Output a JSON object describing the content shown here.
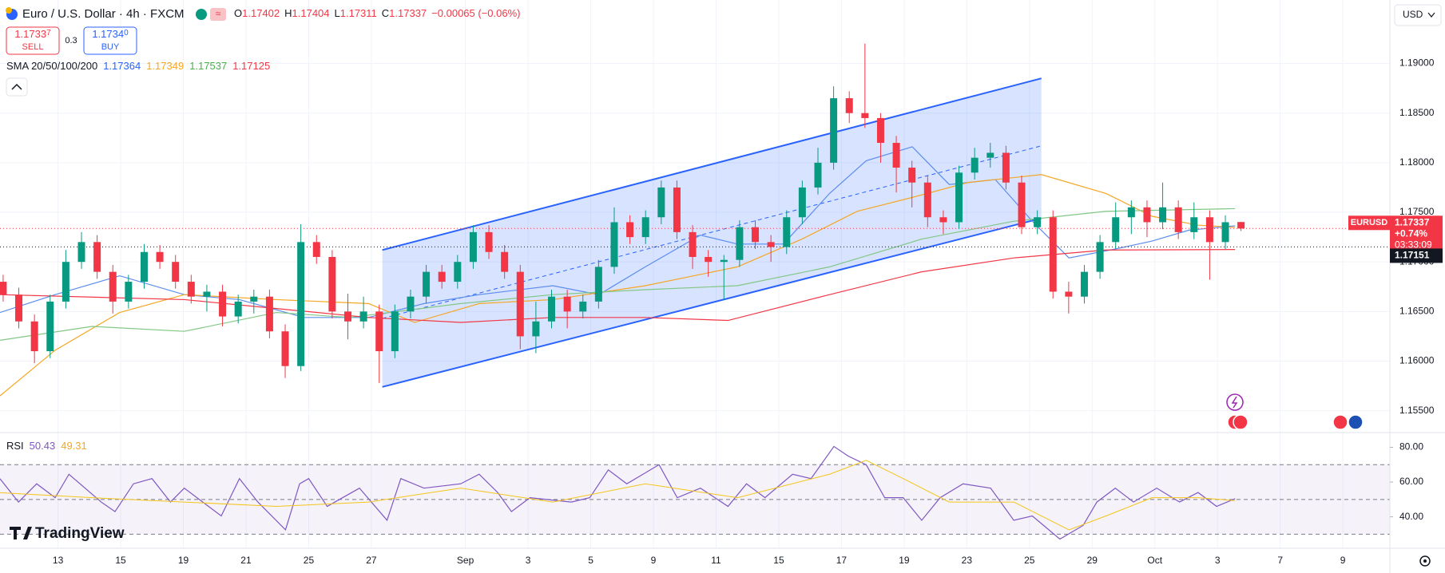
{
  "chart_data": {
    "type": "candlestick",
    "title": "Euro / U.S. Dollar · 4h · FXCM",
    "ohlc_prefixes": [
      "O",
      "H",
      "L",
      "C"
    ],
    "change": "−0.00065 (−0.06%)",
    "sell": {
      "price": "1.1733",
      "pip": "7",
      "label": "SELL"
    },
    "buy": {
      "price": "1.1734",
      "pip": "0",
      "label": "BUY"
    },
    "spread": "0.3",
    "currency": "USD",
    "symbol_tag": "EURUSD",
    "change_tag": "+0.74%",
    "countdown": "03:33:09",
    "ref_line": 1.17151,
    "logo": "TradingView",
    "up_color": "#089981",
    "down_color": "#f23645",
    "x": [
      -1.75,
      -1.25,
      -0.75,
      -0.25,
      0.25,
      0.75,
      1.25,
      1.75,
      2.25,
      2.75,
      3.25,
      3.75,
      4.25,
      4.75,
      5.25,
      5.75,
      6.25,
      6.75,
      7.25,
      7.75,
      8.25,
      8.75,
      9.25,
      9.75,
      10.25,
      10.75,
      11.25,
      11.75,
      12.25,
      12.75,
      13.25,
      13.75,
      14.25,
      14.75,
      15.25,
      15.75,
      16.25,
      16.75,
      17.25,
      17.75,
      18.25,
      18.75,
      19.25,
      19.75,
      20.25,
      20.75,
      21.25,
      21.75,
      22.25,
      22.75,
      23.25,
      23.75,
      24.25,
      24.75,
      25.25,
      25.75,
      26.25,
      26.75,
      27.25,
      27.75,
      28.25,
      28.75,
      29.25,
      29.75,
      30.25,
      30.75,
      31.25,
      31.75,
      32.25,
      32.75,
      33.25,
      33.75,
      34.25,
      34.75,
      35.25,
      35.75,
      36.25,
      36.75,
      37.25,
      37.75
    ],
    "open": [
      1.168,
      1.1667,
      1.164,
      1.161,
      1.166,
      1.17,
      1.172,
      1.169,
      1.166,
      1.168,
      1.171,
      1.17,
      1.168,
      1.1665,
      1.167,
      1.1645,
      1.166,
      1.1665,
      1.163,
      1.1595,
      1.172,
      1.1705,
      1.165,
      1.164,
      1.165,
      1.161,
      1.165,
      1.1665,
      1.169,
      1.168,
      1.17,
      1.173,
      1.171,
      1.169,
      1.1625,
      1.164,
      1.1665,
      1.165,
      1.166,
      1.1695,
      1.174,
      1.1725,
      1.1745,
      1.1775,
      1.173,
      1.1705,
      1.17,
      1.1702,
      1.1735,
      1.172,
      1.1715,
      1.1745,
      1.1775,
      1.18,
      1.1865,
      1.185,
      1.1845,
      1.182,
      1.1795,
      1.178,
      1.1745,
      1.174,
      1.179,
      1.1805,
      1.181,
      1.178,
      1.1735,
      1.1745,
      1.167,
      1.1665,
      1.169,
      1.172,
      1.1745,
      1.1755,
      1.174,
      1.1755,
      1.173,
      1.1745,
      1.172,
      1.17402
    ],
    "high": [
      1.1687,
      1.1674,
      1.1647,
      1.1667,
      1.1712,
      1.173,
      1.1727,
      1.1697,
      1.1687,
      1.1718,
      1.1717,
      1.1707,
      1.1687,
      1.1677,
      1.1677,
      1.1667,
      1.1672,
      1.1672,
      1.1637,
      1.1738,
      1.1727,
      1.1712,
      1.1668,
      1.1665,
      1.1657,
      1.1657,
      1.1672,
      1.1697,
      1.1697,
      1.1707,
      1.1737,
      1.1737,
      1.1717,
      1.1697,
      1.166,
      1.1672,
      1.1672,
      1.1667,
      1.1702,
      1.1755,
      1.1747,
      1.1752,
      1.1782,
      1.1782,
      1.1737,
      1.1712,
      1.1707,
      1.1742,
      1.1742,
      1.1727,
      1.1752,
      1.1782,
      1.1815,
      1.1877,
      1.1872,
      1.192,
      1.185,
      1.1827,
      1.1802,
      1.1787,
      1.1752,
      1.1797,
      1.1815,
      1.182,
      1.1817,
      1.1787,
      1.1752,
      1.1752,
      1.168,
      1.1697,
      1.1727,
      1.176,
      1.1762,
      1.1762,
      1.178,
      1.1762,
      1.176,
      1.1752,
      1.1747,
      1.17404
    ],
    "low": [
      1.166,
      1.1633,
      1.1598,
      1.1603,
      1.1653,
      1.1693,
      1.1683,
      1.1648,
      1.1653,
      1.1673,
      1.1693,
      1.1673,
      1.1658,
      1.165,
      1.1635,
      1.1638,
      1.1648,
      1.1623,
      1.1583,
      1.159,
      1.1698,
      1.1643,
      1.1622,
      1.1633,
      1.1578,
      1.1603,
      1.1643,
      1.1658,
      1.1673,
      1.1673,
      1.1693,
      1.1703,
      1.1683,
      1.1612,
      1.1608,
      1.1633,
      1.1633,
      1.1643,
      1.1653,
      1.1688,
      1.1718,
      1.1718,
      1.1738,
      1.1723,
      1.1693,
      1.1685,
      1.1662,
      1.1695,
      1.1713,
      1.17,
      1.1708,
      1.1738,
      1.1768,
      1.1793,
      1.184,
      1.1835,
      1.18,
      1.177,
      1.1755,
      1.1735,
      1.1728,
      1.1733,
      1.1783,
      1.1795,
      1.1773,
      1.1728,
      1.1728,
      1.1663,
      1.1648,
      1.1658,
      1.1683,
      1.1713,
      1.1728,
      1.1725,
      1.1733,
      1.1723,
      1.1723,
      1.1682,
      1.1713,
      1.17311
    ],
    "close": [
      1.1667,
      1.164,
      1.161,
      1.166,
      1.17,
      1.172,
      1.169,
      1.166,
      1.168,
      1.171,
      1.17,
      1.168,
      1.1665,
      1.167,
      1.1645,
      1.166,
      1.1665,
      1.163,
      1.1595,
      1.172,
      1.1705,
      1.165,
      1.164,
      1.165,
      1.161,
      1.165,
      1.1665,
      1.169,
      1.168,
      1.17,
      1.173,
      1.171,
      1.169,
      1.1625,
      1.164,
      1.1665,
      1.165,
      1.166,
      1.1695,
      1.174,
      1.1725,
      1.1745,
      1.1775,
      1.173,
      1.1705,
      1.17,
      1.1702,
      1.1735,
      1.172,
      1.1715,
      1.1745,
      1.1775,
      1.18,
      1.1865,
      1.185,
      1.1845,
      1.182,
      1.1795,
      1.178,
      1.1745,
      1.174,
      1.179,
      1.1805,
      1.181,
      1.178,
      1.1735,
      1.1745,
      1.167,
      1.1665,
      1.169,
      1.172,
      1.1745,
      1.1755,
      1.174,
      1.1755,
      1.173,
      1.1745,
      1.172,
      1.174,
      1.17337
    ],
    "xlim": [
      -1.85,
      42.5
    ],
    "xticks": [
      {
        "value": 0,
        "label": "13"
      },
      {
        "value": 2,
        "label": "15"
      },
      {
        "value": 4,
        "label": "19"
      },
      {
        "value": 6,
        "label": "21"
      },
      {
        "value": 8,
        "label": "25"
      },
      {
        "value": 10,
        "label": "27"
      },
      {
        "value": 13,
        "label": "Sep"
      },
      {
        "value": 15,
        "label": "3"
      },
      {
        "value": 17,
        "label": "5"
      },
      {
        "value": 19,
        "label": "9"
      },
      {
        "value": 21,
        "label": "11"
      },
      {
        "value": 23,
        "label": "15"
      },
      {
        "value": 25,
        "label": "17"
      },
      {
        "value": 27,
        "label": "19"
      },
      {
        "value": 29,
        "label": "23"
      },
      {
        "value": 31,
        "label": "25"
      },
      {
        "value": 33,
        "label": "29"
      },
      {
        "value": 35,
        "label": "Oct"
      },
      {
        "value": 37,
        "label": "3"
      },
      {
        "value": 39,
        "label": "7"
      },
      {
        "value": 41,
        "label": "9"
      }
    ],
    "ylim": [
      1.1528,
      1.1964
    ],
    "yticks": [
      {
        "value": 1.155,
        "label": "1.15500"
      },
      {
        "value": 1.16,
        "label": "1.16000"
      },
      {
        "value": 1.165,
        "label": "1.16500"
      },
      {
        "value": 1.17,
        "label": "1.17000"
      },
      {
        "value": 1.175,
        "label": "1.17500"
      },
      {
        "value": 1.18,
        "label": "1.18000"
      },
      {
        "value": 1.185,
        "label": "1.18500"
      },
      {
        "value": 1.19,
        "label": "1.19000"
      }
    ],
    "channel": {
      "color": "#2962ff",
      "x": [
        10.35,
        31.38
      ],
      "upper": [
        1.1712,
        1.1885
      ],
      "lower": [
        1.1574,
        1.1744
      ],
      "middle": [
        1.1643,
        1.1817
      ]
    },
    "sma": {
      "label": "SMA 20/50/100/200",
      "series": [
        {
          "color": "#5b8def",
          "x": [
            -1.85,
            -0.09,
            1.97,
            4.03,
            5.79,
            7.85,
            9.91,
            11.68,
            13.44,
            15.79,
            17.26,
            18.74,
            20.5,
            21.68,
            23.15,
            24.62,
            25.79,
            27.26,
            28.44,
            29.91,
            31.09,
            32.26,
            33.74,
            34.91,
            36.09,
            37.56
          ],
          "values": [
            1.1649,
            1.1667,
            1.1686,
            1.1667,
            1.1662,
            1.1644,
            1.1644,
            1.1658,
            1.1667,
            1.1676,
            1.1667,
            1.1695,
            1.1727,
            1.1718,
            1.1718,
            1.1769,
            1.1802,
            1.1816,
            1.1778,
            1.1783,
            1.1741,
            1.1704,
            1.1713,
            1.1721,
            1.1732,
            1.17364
          ]
        },
        {
          "color": "#f5a623",
          "x": [
            -1.85,
            -0.09,
            1.97,
            4.03,
            6.97,
            9.91,
            11.38,
            13.44,
            15.79,
            18.74,
            21.68,
            23.74,
            25.5,
            27.26,
            29.03,
            31.38,
            33.44,
            34.91,
            36.38,
            37.56
          ],
          "values": [
            1.1565,
            1.1611,
            1.1649,
            1.1667,
            1.1662,
            1.1658,
            1.1639,
            1.1658,
            1.1662,
            1.1676,
            1.1695,
            1.1723,
            1.1751,
            1.1765,
            1.178,
            1.1788,
            1.1769,
            1.1746,
            1.1737,
            1.17349
          ]
        },
        {
          "color": "#81c784",
          "x": [
            -1.85,
            1.09,
            4.03,
            6.97,
            9.32,
            12.85,
            15.79,
            18.74,
            21.68,
            24.62,
            27.56,
            30.5,
            33.44,
            37.56
          ],
          "values": [
            1.1621,
            1.1635,
            1.163,
            1.1649,
            1.1644,
            1.1658,
            1.1667,
            1.1672,
            1.1676,
            1.1695,
            1.1723,
            1.1741,
            1.1751,
            1.17537
          ]
        },
        {
          "color": "#f23645",
          "x": [
            -1.85,
            4.03,
            6.97,
            9.91,
            12.85,
            15.79,
            18.74,
            21.38,
            24.62,
            27.56,
            30.5,
            33.44,
            37.56
          ],
          "values": [
            1.1667,
            1.1662,
            1.1653,
            1.1644,
            1.1639,
            1.1644,
            1.1644,
            1.1641,
            1.1667,
            1.169,
            1.1704,
            1.1712,
            1.17125
          ]
        }
      ]
    },
    "rsi": {
      "label": "RSI",
      "ylim": [
        21.9,
        88.5
      ],
      "yticks": [
        {
          "value": 40,
          "label": "40.00"
        },
        {
          "value": 60,
          "label": "60.00"
        },
        {
          "value": 80,
          "label": "80.00"
        }
      ],
      "bands": [
        70,
        50,
        30
      ],
      "series": [
        {
          "color": "#7e57c2",
          "x": [
            -1.85,
            -1.26,
            -0.68,
            -0.09,
            0.35,
            1.38,
            1.82,
            2.41,
            3,
            3.59,
            4.03,
            5.21,
            5.79,
            6.38,
            7.26,
            7.71,
            8,
            8.59,
            9.62,
            10.5,
            10.94,
            11.68,
            12.85,
            13.44,
            14.03,
            14.47,
            15.06,
            16.38,
            16.97,
            17.56,
            18.15,
            19.18,
            19.76,
            20.5,
            21.38,
            21.97,
            22.56,
            23.44,
            24.03,
            24.76,
            25.21,
            25.79,
            26.38,
            26.97,
            27.56,
            28.15,
            28.88,
            29.76,
            30.5,
            31.09,
            31.97,
            32.71,
            33.15,
            33.74,
            34.32,
            35.06,
            35.79,
            36.38,
            36.97,
            37.56
          ],
          "values": [
            61.9,
            48.5,
            59,
            51,
            64.5,
            48.5,
            43,
            59,
            62,
            48.5,
            56.5,
            40.5,
            62,
            48.5,
            32.5,
            59,
            62,
            46,
            56.5,
            38,
            62,
            56.5,
            59,
            64.5,
            54,
            43,
            51,
            48.5,
            51,
            67,
            59,
            70,
            51,
            56.5,
            46,
            59,
            51,
            64.5,
            62,
            80.5,
            75,
            70,
            51,
            51,
            38,
            51,
            59,
            56.5,
            38,
            40.5,
            27.2,
            35,
            48.5,
            56.5,
            48.5,
            56.5,
            48.5,
            54,
            46,
            50.43
          ]
        },
        {
          "color": "#f5c518",
          "x": [
            -1.85,
            1.09,
            4.03,
            6.97,
            9.91,
            12.85,
            15.79,
            18.74,
            21.68,
            24.62,
            25.79,
            26.97,
            28.44,
            30.5,
            32.26,
            33.44,
            34.91,
            36.38,
            37.56
          ],
          "values": [
            53.9,
            51,
            48.5,
            46,
            48.5,
            56.5,
            48.5,
            59,
            51,
            64.5,
            72.5,
            62,
            48.5,
            48.5,
            32.5,
            40.5,
            51,
            51,
            49.31
          ]
        }
      ]
    }
  }
}
